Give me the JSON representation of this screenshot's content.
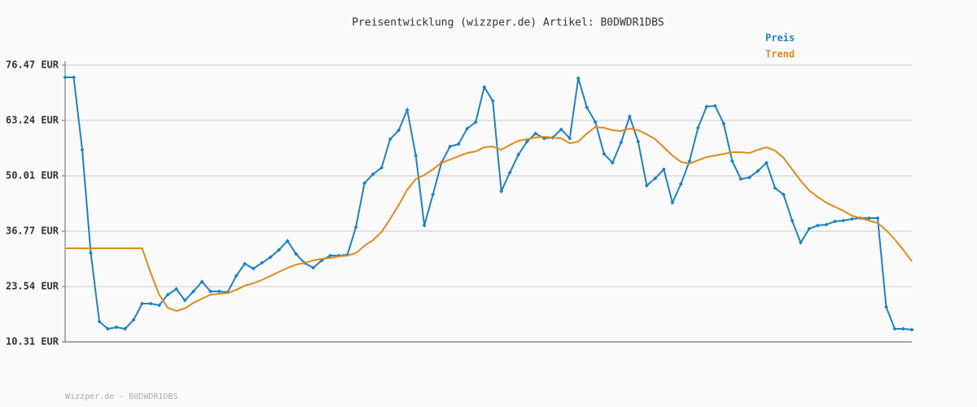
{
  "chart_data": {
    "type": "line",
    "title": "Preisentwicklung (wizzper.de) Artikel: B0DWDR1DBS",
    "footer": "Wizzper.de - B0DWDR1DBS",
    "categories": [
      null,
      null,
      null,
      null,
      null,
      null,
      null,
      null,
      null,
      null,
      null,
      null,
      null,
      null,
      null,
      null,
      null,
      null,
      null,
      null,
      null,
      null,
      null,
      null,
      null,
      null,
      null,
      null,
      null,
      null,
      null,
      null,
      null,
      null,
      null,
      null,
      null,
      null,
      null,
      null,
      null,
      null,
      null,
      null,
      null,
      null,
      null,
      null,
      null,
      null,
      null,
      null,
      null,
      null,
      null,
      null,
      null,
      null,
      null,
      null,
      null,
      null,
      null,
      null,
      null,
      null,
      null,
      null,
      null,
      null,
      null,
      null,
      null,
      null,
      null,
      null,
      null,
      null,
      null,
      null,
      null,
      null,
      null,
      null,
      null,
      null,
      null,
      null,
      null,
      null,
      null,
      null,
      null,
      null,
      null,
      null,
      null,
      null,
      null,
      null
    ],
    "series": [
      {
        "name": "Preis",
        "color": "#1f82c0",
        "markers": true,
        "values": [
          73.55,
          73.55,
          56.23,
          31.52,
          15.17,
          13.42,
          13.81,
          13.42,
          15.56,
          19.45,
          19.45,
          19.07,
          21.6,
          22.96,
          20.23,
          22.37,
          24.71,
          22.37,
          22.37,
          22.18,
          26.07,
          28.99,
          27.82,
          29.18,
          30.55,
          32.3,
          34.44,
          31.33,
          29.18,
          28.01,
          29.77,
          30.94,
          30.94,
          31.13,
          37.75,
          48.25,
          50.4,
          51.95,
          58.76,
          60.9,
          65.77,
          54.87,
          38.14,
          45.53,
          53.12,
          57.01,
          57.6,
          61.29,
          62.85,
          71.22,
          67.91,
          46.31,
          50.79,
          55.07,
          58.18,
          60.13,
          58.96,
          59.15,
          61.1,
          58.96,
          73.36,
          66.35,
          62.85,
          55.26,
          53.12,
          57.99,
          64.21,
          58.18,
          47.67,
          49.42,
          51.56,
          43.58,
          48.06,
          53.51,
          61.49,
          66.55,
          66.74,
          62.46,
          53.51,
          49.23,
          49.62,
          51.17,
          53.12,
          47.09,
          45.53,
          39.3,
          34.05,
          37.36,
          38.14,
          38.33,
          39.11,
          39.3,
          39.69,
          39.89,
          39.89,
          39.89,
          18.67,
          13.42,
          13.42,
          13.22
        ]
      },
      {
        "name": "Trend",
        "color": "#e08a1e",
        "markers": false,
        "values": [
          32.68,
          32.68,
          32.68,
          32.68,
          32.68,
          32.68,
          32.68,
          32.68,
          32.68,
          32.68,
          26.85,
          21.6,
          18.48,
          17.7,
          18.29,
          19.65,
          20.62,
          21.6,
          21.79,
          21.98,
          22.76,
          23.74,
          24.32,
          25.1,
          26.07,
          27.04,
          28.01,
          28.79,
          29.18,
          29.77,
          30.16,
          30.36,
          30.74,
          30.94,
          31.52,
          33.27,
          34.64,
          36.58,
          39.69,
          43.0,
          46.7,
          49.23,
          50.2,
          51.56,
          53.12,
          53.9,
          54.68,
          55.46,
          55.84,
          56.82,
          57.01,
          56.23,
          57.4,
          58.37,
          58.76,
          59.15,
          59.34,
          59.15,
          58.96,
          57.79,
          58.18,
          60.13,
          61.68,
          61.49,
          60.9,
          60.71,
          61.29,
          60.9,
          59.93,
          58.76,
          56.82,
          54.87,
          53.32,
          52.93,
          53.71,
          54.49,
          54.87,
          55.26,
          55.65,
          55.65,
          55.46,
          56.23,
          56.82,
          56.04,
          54.29,
          51.56,
          48.84,
          46.5,
          44.94,
          43.58,
          42.6,
          41.63,
          40.47,
          39.89,
          39.3,
          38.72,
          36.97,
          34.83,
          32.3,
          29.57
        ]
      }
    ],
    "ylim": [
      10.31,
      76.47
    ],
    "yticks": [
      {
        "value": 10.31,
        "label": "10.31 EUR"
      },
      {
        "value": 23.54,
        "label": "23.54 EUR"
      },
      {
        "value": 36.77,
        "label": "36.77 EUR"
      },
      {
        "value": 50.01,
        "label": "50.01 EUR"
      },
      {
        "value": 63.24,
        "label": "63.24 EUR"
      },
      {
        "value": 76.47,
        "label": "76.47 EUR"
      }
    ],
    "grid": true,
    "legend": "top-right"
  }
}
